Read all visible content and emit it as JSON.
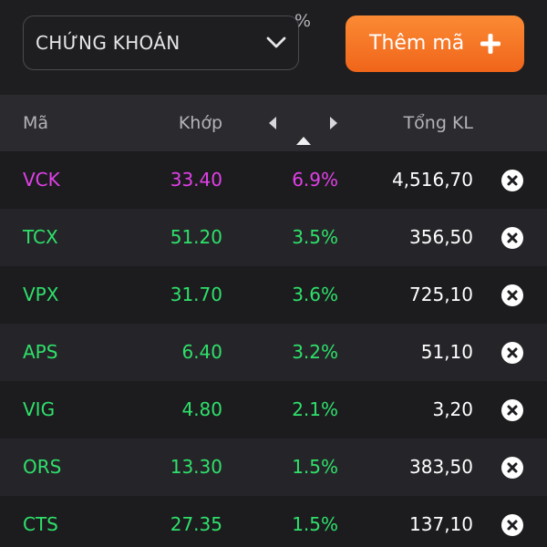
{
  "toolbar": {
    "category_select": "CHỨNG KHOÁN",
    "add_button_label": "Thêm mã",
    "add_icon": "plus-icon",
    "dropdown_icon": "chevron-down-icon"
  },
  "table": {
    "headers": {
      "symbol": "Mã",
      "match_price": "Khớp",
      "percent": "%",
      "total_volume": "Tổng KL"
    },
    "sort": {
      "column": "percent",
      "direction": "ascending-indicator"
    },
    "rows": [
      {
        "symbol": "VCK",
        "price": "33.40",
        "change_pct": "6.9%",
        "volume": "4,516,70",
        "color": "#e040e6"
      },
      {
        "symbol": "TCX",
        "price": "51.20",
        "change_pct": "3.5%",
        "volume": "356,50",
        "color": "#2fe06a"
      },
      {
        "symbol": "VPX",
        "price": "31.70",
        "change_pct": "3.6%",
        "volume": "725,10",
        "color": "#2fe06a"
      },
      {
        "symbol": "APS",
        "price": "6.40",
        "change_pct": "3.2%",
        "volume": "51,10",
        "color": "#2fe06a"
      },
      {
        "symbol": "VIG",
        "price": "4.80",
        "change_pct": "2.1%",
        "volume": "3,20",
        "color": "#2fe06a"
      },
      {
        "symbol": "ORS",
        "price": "13.30",
        "change_pct": "1.5%",
        "volume": "383,50",
        "color": "#2fe06a"
      },
      {
        "symbol": "CTS",
        "price": "27.35",
        "change_pct": "1.5%",
        "volume": "137,10",
        "color": "#2fe06a"
      }
    ]
  },
  "colors": {
    "background": "#1e1e21",
    "header_bg": "#2b2b2f",
    "accent": "#f57a26",
    "ceiling": "#e040e6",
    "up": "#2fe06a"
  }
}
